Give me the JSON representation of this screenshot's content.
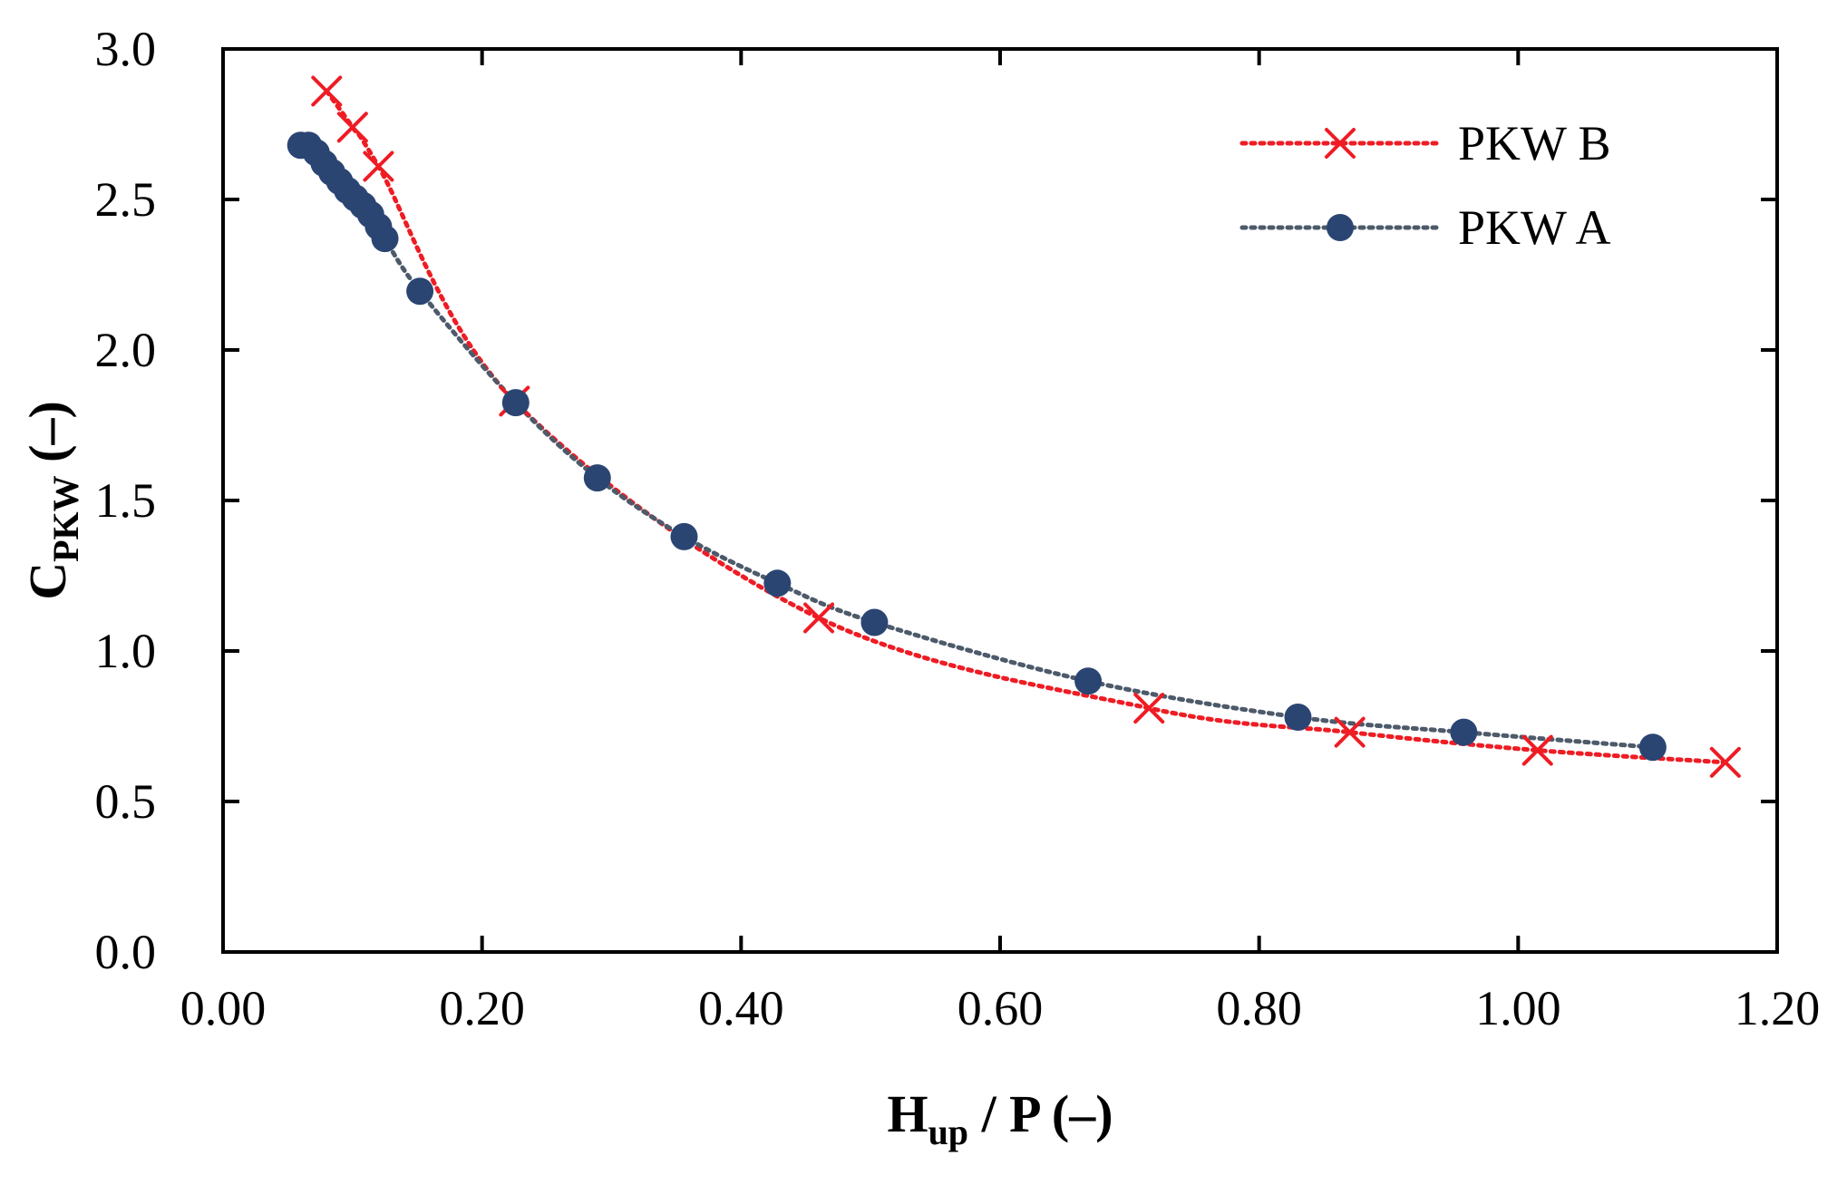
{
  "chart_data": {
    "type": "line",
    "title": "",
    "xlabel": {
      "main": "H",
      "sub": "up",
      "rest": " / P (–)"
    },
    "ylabel": {
      "main": "C",
      "sub": "PKW",
      "rest": " (–)"
    },
    "xlim": [
      0.0,
      1.2
    ],
    "ylim": [
      0.0,
      3.0
    ],
    "xticks": [
      {
        "value": 0.0,
        "label": "0.00"
      },
      {
        "value": 0.2,
        "label": "0.20"
      },
      {
        "value": 0.4,
        "label": "0.40"
      },
      {
        "value": 0.6,
        "label": "0.60"
      },
      {
        "value": 0.8,
        "label": "0.80"
      },
      {
        "value": 1.0,
        "label": "1.00"
      },
      {
        "value": 1.2,
        "label": "1.20"
      }
    ],
    "yticks": [
      {
        "value": 0.0,
        "label": "0.0"
      },
      {
        "value": 0.5,
        "label": "0.5"
      },
      {
        "value": 1.0,
        "label": "1.0"
      },
      {
        "value": 1.5,
        "label": "1.5"
      },
      {
        "value": 2.0,
        "label": "2.0"
      },
      {
        "value": 2.5,
        "label": "2.5"
      },
      {
        "value": 3.0,
        "label": "3.0"
      }
    ],
    "grid": false,
    "legend_position": "top-right",
    "series": [
      {
        "name": "PKW B",
        "color": "#ee1c24",
        "marker": "x",
        "line_style": "dotted",
        "x": [
          0.08,
          0.1,
          0.12,
          0.225,
          0.46,
          0.715,
          0.87,
          1.015,
          1.16
        ],
        "y": [
          2.86,
          2.74,
          2.61,
          1.83,
          1.11,
          0.81,
          0.73,
          0.67,
          0.63
        ]
      },
      {
        "name": "PKW A",
        "color": "#2b4573",
        "line_color": "#4d5a6a",
        "marker": "circle",
        "line_style": "dotted",
        "x": [
          0.06,
          0.066,
          0.072,
          0.078,
          0.084,
          0.09,
          0.096,
          0.102,
          0.108,
          0.114,
          0.12,
          0.125,
          0.152,
          0.226,
          0.289,
          0.356,
          0.428,
          0.503,
          0.668,
          0.83,
          0.958,
          1.104
        ],
        "y": [
          2.68,
          2.68,
          2.655,
          2.62,
          2.59,
          2.56,
          2.53,
          2.505,
          2.48,
          2.45,
          2.41,
          2.37,
          2.195,
          1.825,
          1.575,
          1.38,
          1.225,
          1.095,
          0.9,
          0.78,
          0.73,
          0.68
        ]
      }
    ]
  }
}
